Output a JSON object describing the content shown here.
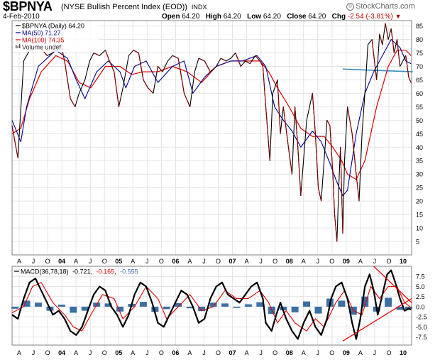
{
  "header": {
    "symbol": "$BPNYA",
    "name": "(NYSE Bullish Percent Index (EOD))",
    "exchange": "INDX",
    "date": "4-Feb-2010",
    "open_label": "Open",
    "open": "64.20",
    "high_label": "High",
    "high": "64.20",
    "low_label": "Low",
    "low": "64.20",
    "close_label": "Close",
    "close": "64.20",
    "chg_label": "Chg",
    "chg": "-2.54 (-3.81%)",
    "chg_arrow": "▼",
    "logo": "StockCharts.com",
    "logo_mark": "©"
  },
  "colors": {
    "price": "#000000",
    "price_down": "#8b0000",
    "ma50": "#00008b",
    "ma100": "#dd0000",
    "volume": "#555555",
    "macd_line": "#000000",
    "signal_line": "#dd0000",
    "histogram": "#3b6fa6",
    "trend_h": "#3a8dc0",
    "trend_diag": "#ee0000",
    "grid": "#e4e4e4",
    "frame": "#808080"
  },
  "chart_data": [
    {
      "type": "line",
      "title": "$BPNYA (NYSE Bullish Percent Index (EOD)) INDX",
      "legend": [
        {
          "label": "$BPNYA (Daily) 64.20",
          "color": "#000000"
        },
        {
          "label": "MA(50) 71.27",
          "color": "#00008b"
        },
        {
          "label": "MA(100) 74.35",
          "color": "#dd0000"
        },
        {
          "label": "Volume undef",
          "color": "#555555"
        }
      ],
      "legend_position": "top-left",
      "x_ticks": [
        "A",
        "J",
        "O",
        "04",
        "A",
        "J",
        "O",
        "05",
        "A",
        "J",
        "O",
        "06",
        "A",
        "J",
        "O",
        "07",
        "A",
        "J",
        "O",
        "08",
        "A",
        "J",
        "O",
        "09",
        "A",
        "J",
        "O",
        "10"
      ],
      "y_ticks": [
        5,
        10,
        15,
        20,
        25,
        30,
        35,
        40,
        45,
        50,
        55,
        60,
        65,
        70,
        75,
        80,
        85
      ],
      "ylim": [
        0,
        87
      ],
      "xlim": [
        2003.25,
        2010.1
      ],
      "series": [
        {
          "name": "$BPNYA",
          "x": [
            2003.25,
            2003.3,
            2003.35,
            2003.45,
            2003.55,
            2003.7,
            2003.85,
            2003.95,
            2004.0,
            2004.1,
            2004.15,
            2004.25,
            2004.33,
            2004.4,
            2004.5,
            2004.58,
            2004.65,
            2004.75,
            2004.85,
            2004.92,
            2005.0,
            2005.08,
            2005.15,
            2005.25,
            2005.33,
            2005.42,
            2005.5,
            2005.58,
            2005.67,
            2005.75,
            2005.83,
            2005.92,
            2006.0,
            2006.1,
            2006.2,
            2006.3,
            2006.38,
            2006.45,
            2006.55,
            2006.65,
            2006.75,
            2006.83,
            2006.92,
            2007.0,
            2007.08,
            2007.17,
            2007.25,
            2007.33,
            2007.42,
            2007.5,
            2007.55,
            2007.6,
            2007.67,
            2007.72,
            2007.8,
            2007.85,
            2007.9,
            2008.0,
            2008.05,
            2008.1,
            2008.15,
            2008.2,
            2008.3,
            2008.4,
            2008.45,
            2008.5,
            2008.55,
            2008.6,
            2008.65,
            2008.7,
            2008.75,
            2008.78,
            2008.82,
            2008.85,
            2008.88,
            2008.92,
            2008.95,
            2009.0,
            2009.08,
            2009.15,
            2009.2,
            2009.25,
            2009.3,
            2009.35,
            2009.42,
            2009.5,
            2009.55,
            2009.6,
            2009.65,
            2009.7,
            2009.75,
            2009.8,
            2009.85,
            2009.9,
            2009.95,
            2010.0,
            2010.05,
            2010.09
          ],
          "values": [
            48,
            42,
            36,
            72,
            76,
            78,
            74,
            75,
            78,
            77,
            72,
            58,
            55,
            60,
            65,
            72,
            75,
            74,
            76,
            72,
            68,
            55,
            62,
            74,
            76,
            75,
            65,
            62,
            60,
            70,
            68,
            72,
            74,
            73,
            60,
            55,
            68,
            73,
            72,
            68,
            70,
            73,
            72,
            73,
            75,
            70,
            72,
            71,
            74,
            72,
            70,
            55,
            35,
            60,
            65,
            45,
            55,
            38,
            30,
            55,
            40,
            22,
            50,
            60,
            45,
            25,
            20,
            35,
            50,
            48,
            30,
            15,
            5,
            25,
            40,
            8,
            35,
            55,
            45,
            30,
            20,
            45,
            60,
            78,
            80,
            65,
            82,
            78,
            86,
            80,
            84,
            75,
            80,
            70,
            72,
            74,
            66,
            64
          ]
        },
        {
          "name": "MA(50)",
          "x": [
            2003.25,
            2003.4,
            2003.5,
            2003.7,
            2004.0,
            2004.2,
            2004.35,
            2004.5,
            2004.7,
            2004.9,
            2005.1,
            2005.2,
            2005.35,
            2005.55,
            2005.75,
            2006.0,
            2006.2,
            2006.35,
            2006.55,
            2006.75,
            2007.0,
            2007.2,
            2007.45,
            2007.6,
            2007.75,
            2007.9,
            2008.05,
            2008.2,
            2008.4,
            2008.55,
            2008.7,
            2008.8,
            2008.92,
            2009.0,
            2009.15,
            2009.3,
            2009.45,
            2009.6,
            2009.75,
            2009.9,
            2010.0,
            2010.09
          ],
          "values": [
            50,
            42,
            55,
            70,
            76,
            73,
            65,
            58,
            68,
            72,
            68,
            62,
            70,
            72,
            64,
            70,
            72,
            60,
            66,
            70,
            72,
            72,
            74,
            70,
            55,
            50,
            46,
            40,
            46,
            42,
            34,
            28,
            22,
            24,
            45,
            60,
            68,
            74,
            80,
            77,
            72,
            71
          ]
        },
        {
          "name": "MA(100)",
          "x": [
            2003.25,
            2003.4,
            2003.55,
            2003.75,
            2004.0,
            2004.2,
            2004.4,
            2004.6,
            2004.85,
            2005.1,
            2005.3,
            2005.5,
            2005.75,
            2006.0,
            2006.25,
            2006.5,
            2006.75,
            2007.0,
            2007.25,
            2007.5,
            2007.65,
            2007.8,
            2008.0,
            2008.2,
            2008.4,
            2008.6,
            2008.75,
            2008.9,
            2009.0,
            2009.15,
            2009.3,
            2009.5,
            2009.7,
            2009.85,
            2010.0,
            2010.09
          ],
          "values": [
            45,
            47,
            58,
            68,
            74,
            72,
            64,
            62,
            70,
            70,
            67,
            68,
            68,
            70,
            68,
            64,
            70,
            72,
            72,
            72,
            68,
            62,
            55,
            47,
            44,
            44,
            40,
            35,
            30,
            28,
            35,
            55,
            70,
            76,
            76,
            74
          ]
        },
        {
          "name": "Trend (horizontal)",
          "x": [
            2008.92,
            2010.12
          ],
          "values": [
            69,
            68
          ]
        }
      ]
    },
    {
      "type": "line",
      "title": "MACD(36,78,18) -0.721, -0.165, -0.555",
      "legend": [
        {
          "label": "MACD(36,78,18)",
          "color": "#000000"
        },
        {
          "label": "-0.721",
          "color": "#000000"
        },
        {
          "label": "-0.165",
          "color": "#dd0000"
        },
        {
          "label": "-0.555",
          "color": "#3b6fa6"
        }
      ],
      "x_ticks": [
        "A",
        "J",
        "O",
        "04",
        "A",
        "J",
        "O",
        "05",
        "A",
        "J",
        "O",
        "06",
        "A",
        "J",
        "O",
        "07",
        "A",
        "J",
        "O",
        "08",
        "A",
        "J",
        "O",
        "09",
        "A",
        "J",
        "O",
        "10"
      ],
      "y_ticks": [
        "-7.5",
        "-5.0",
        "-2.5",
        "0.0",
        "2.5",
        "5.0",
        "7.5"
      ],
      "ylim": [
        -9.5,
        10
      ],
      "xlim": [
        2003.25,
        2010.1
      ],
      "series": [
        {
          "name": "MACD",
          "x": [
            2003.25,
            2003.35,
            2003.45,
            2003.55,
            2003.65,
            2003.75,
            2003.85,
            2003.95,
            2004.05,
            2004.15,
            2004.25,
            2004.35,
            2004.45,
            2004.55,
            2004.65,
            2004.75,
            2004.85,
            2004.95,
            2005.05,
            2005.15,
            2005.25,
            2005.35,
            2005.45,
            2005.55,
            2005.65,
            2005.75,
            2005.85,
            2005.95,
            2006.05,
            2006.15,
            2006.25,
            2006.35,
            2006.45,
            2006.55,
            2006.65,
            2006.75,
            2006.85,
            2006.95,
            2007.05,
            2007.15,
            2007.25,
            2007.35,
            2007.45,
            2007.55,
            2007.6,
            2007.7,
            2007.78,
            2007.85,
            2007.95,
            2008.05,
            2008.15,
            2008.25,
            2008.35,
            2008.45,
            2008.55,
            2008.65,
            2008.72,
            2008.8,
            2008.9,
            2009.0,
            2009.08,
            2009.15,
            2009.22,
            2009.3,
            2009.38,
            2009.45,
            2009.52,
            2009.6,
            2009.68,
            2009.75,
            2009.82,
            2009.9,
            2009.98,
            2010.05,
            2010.09
          ],
          "values": [
            -2,
            -3,
            2,
            6,
            7,
            4,
            1,
            -2,
            -1,
            -3,
            -6,
            -7,
            -5,
            -1,
            3,
            5,
            4,
            0,
            -2,
            -5,
            -2,
            3,
            6,
            5,
            1,
            -4,
            -5,
            -2,
            1,
            4,
            3,
            0,
            -4,
            -3,
            2,
            5,
            6,
            3,
            2,
            1,
            3,
            5,
            6,
            2,
            -4,
            -6,
            -2,
            1,
            -3,
            -6,
            -8,
            -4,
            -1,
            -5,
            -7,
            -3,
            2,
            5,
            6,
            2,
            -4,
            -8,
            -3,
            5,
            8,
            4,
            -2,
            3,
            8,
            9,
            6,
            2,
            -1,
            -0.5,
            -0.7
          ]
        },
        {
          "name": "Signal",
          "x": [
            2003.25,
            2003.45,
            2003.6,
            2003.75,
            2003.95,
            2004.15,
            2004.3,
            2004.45,
            2004.6,
            2004.8,
            2005.0,
            2005.15,
            2005.35,
            2005.55,
            2005.75,
            2005.9,
            2006.1,
            2006.3,
            2006.5,
            2006.7,
            2006.9,
            2007.1,
            2007.3,
            2007.5,
            2007.65,
            2007.8,
            2007.95,
            2008.1,
            2008.3,
            2008.45,
            2008.6,
            2008.8,
            2008.95,
            2009.1,
            2009.25,
            2009.4,
            2009.55,
            2009.7,
            2009.85,
            2009.98,
            2010.09
          ],
          "values": [
            -1.5,
            0,
            5,
            6,
            1,
            -2,
            -5,
            -6,
            -2,
            3,
            2,
            -3,
            0,
            5,
            2,
            -3,
            0,
            3,
            -1,
            0,
            4,
            2,
            2,
            4,
            1,
            -4,
            -1,
            -4,
            -6,
            -3,
            -5,
            1,
            4,
            -1,
            -2,
            5,
            2,
            5,
            5,
            1,
            -0.2
          ]
        },
        {
          "name": "Histogram",
          "x": [
            2003.3,
            2003.5,
            2003.7,
            2003.9,
            2004.1,
            2004.3,
            2004.5,
            2004.7,
            2004.9,
            2005.1,
            2005.3,
            2005.5,
            2005.7,
            2005.9,
            2006.1,
            2006.3,
            2006.5,
            2006.7,
            2006.9,
            2007.1,
            2007.3,
            2007.5,
            2007.7,
            2007.9,
            2008.1,
            2008.3,
            2008.5,
            2008.7,
            2008.9,
            2009.1,
            2009.3,
            2009.5,
            2009.7,
            2009.9,
            2010.05
          ],
          "values": [
            -0.5,
            1.5,
            1,
            -1,
            0.5,
            -1.5,
            -1,
            1,
            0.8,
            -1.2,
            0.7,
            1.2,
            -1.3,
            -0.6,
            0.9,
            -0.4,
            -1.1,
            1,
            0.8,
            -0.3,
            0.6,
            1.1,
            -1.8,
            -0.9,
            -1.4,
            1.3,
            -1.7,
            2,
            1.5,
            -2,
            2.5,
            -1.2,
            2.2,
            -0.8,
            -0.6
          ]
        },
        {
          "name": "Trend up",
          "x": [
            2008.92,
            2010.1
          ],
          "values": [
            -8.5,
            2
          ]
        },
        {
          "name": "Trend down",
          "x": [
            2009.45,
            2010.1
          ],
          "values": [
            10,
            1
          ]
        }
      ]
    }
  ]
}
